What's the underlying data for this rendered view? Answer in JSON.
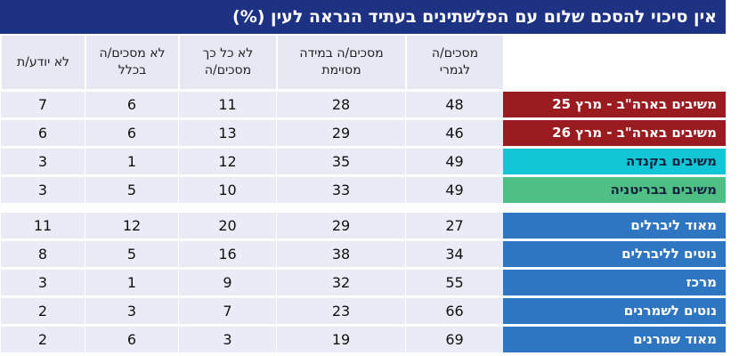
{
  "header": {
    "title": "אין סיכוי להסכם שלום עם הפלשתינים בעתיד הנראה לעין (%)"
  },
  "table": {
    "columns": [
      [
        "מסכים/ה",
        "לגמרי"
      ],
      [
        "מסכים/ה במידה",
        "מסוימת"
      ],
      [
        "לא כל כך",
        "מסכים/ה"
      ],
      [
        "לא מסכים/ה",
        "בכלל"
      ],
      [
        "לא יודע/ת"
      ]
    ],
    "groups": [
      [
        {
          "label": "משיבים בארה\"ב - מרץ 25",
          "color": "#9b1c20",
          "values": [
            48,
            28,
            11,
            6,
            7
          ]
        },
        {
          "label": "משיבים בארה\"ב - מרץ 26",
          "color": "#9b1c20",
          "values": [
            46,
            29,
            13,
            6,
            6
          ]
        },
        {
          "label": "משיבים בקנדה",
          "color": "#12c6d6",
          "values": [
            49,
            35,
            12,
            1,
            3
          ]
        },
        {
          "label": "משיבים בבריטניה",
          "color": "#4fbf85",
          "values": [
            49,
            33,
            10,
            5,
            3
          ]
        }
      ],
      [
        {
          "label": "מאוד ליברלים",
          "color": "#2f76c2",
          "values": [
            27,
            29,
            20,
            12,
            11
          ]
        },
        {
          "label": "נוטים לליברלים",
          "color": "#2f76c2",
          "values": [
            34,
            38,
            16,
            5,
            8
          ]
        },
        {
          "label": "מרכז",
          "color": "#2f76c2",
          "values": [
            55,
            32,
            9,
            1,
            3
          ]
        },
        {
          "label": "נוטים לשמרנים",
          "color": "#2f76c2",
          "values": [
            66,
            23,
            7,
            3,
            2
          ]
        },
        {
          "label": "מאוד שמרנים",
          "color": "#2f76c2",
          "values": [
            69,
            19,
            3,
            6,
            2
          ]
        }
      ]
    ]
  }
}
